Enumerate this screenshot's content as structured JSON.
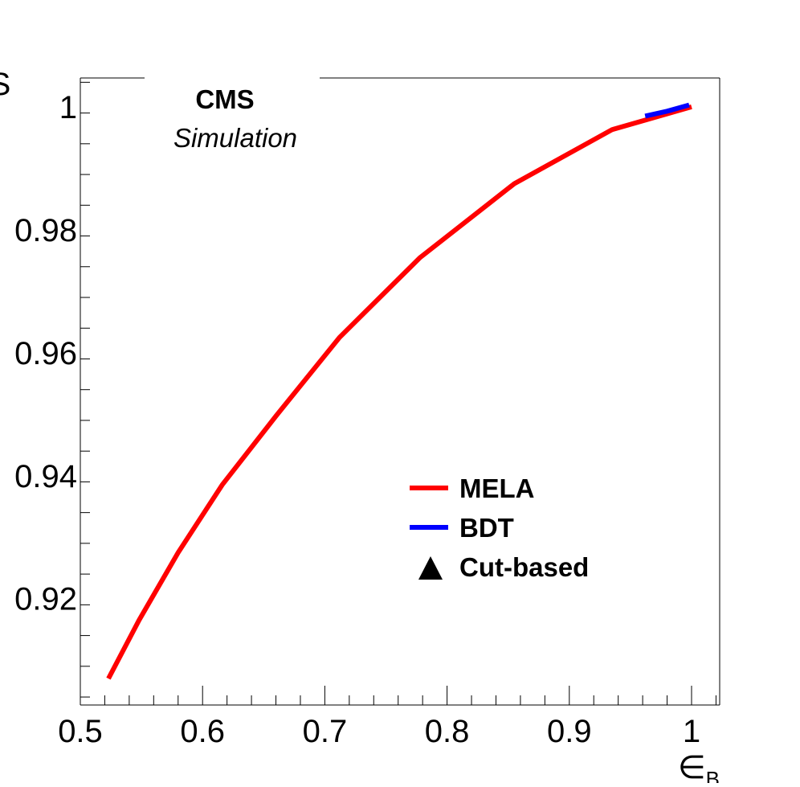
{
  "chart_data": {
    "type": "line",
    "title": "",
    "header": {
      "experiment": "CMS",
      "subtitle": "Simulation"
    },
    "xlabel": "∈B",
    "ylabel": "S",
    "xlim": [
      0.5,
      1.023
    ],
    "ylim": [
      0.9027,
      1.0047
    ],
    "x_ticks": [
      {
        "value": 0.5,
        "label": "0.5"
      },
      {
        "value": 0.6,
        "label": "0.6"
      },
      {
        "value": 0.7,
        "label": "0.7"
      },
      {
        "value": 0.8,
        "label": "0.8"
      },
      {
        "value": 0.9,
        "label": "0.9"
      },
      {
        "value": 1.0,
        "label": "1"
      }
    ],
    "y_ticks": [
      {
        "value": 0.92,
        "label": "0.92"
      },
      {
        "value": 0.94,
        "label": "0.94"
      },
      {
        "value": 0.96,
        "label": "0.96"
      },
      {
        "value": 0.98,
        "label": "0.98"
      },
      {
        "value": 1.0,
        "label": "1"
      }
    ],
    "grid": false,
    "legend_position": "lower-right",
    "series": [
      {
        "name": "MELA",
        "color": "#ff0000",
        "marker": "line",
        "points": [
          [
            0.523,
            0.907
          ],
          [
            0.548,
            0.9165
          ],
          [
            0.58,
            0.9275
          ],
          [
            0.616,
            0.9385
          ],
          [
            0.66,
            0.9497
          ],
          [
            0.712,
            0.9625
          ],
          [
            0.778,
            0.9755
          ],
          [
            0.855,
            0.9875
          ],
          [
            0.935,
            0.9963
          ],
          [
            1.0,
            1.0
          ]
        ]
      },
      {
        "name": "BDT",
        "color": "#0000ff",
        "marker": "line",
        "points": [
          [
            0.962,
            0.9985
          ],
          [
            0.98,
            0.9993
          ],
          [
            0.998,
            1.0003
          ]
        ]
      },
      {
        "name": "Cut-based",
        "color": "#000000",
        "marker": "triangle",
        "points": []
      }
    ]
  }
}
